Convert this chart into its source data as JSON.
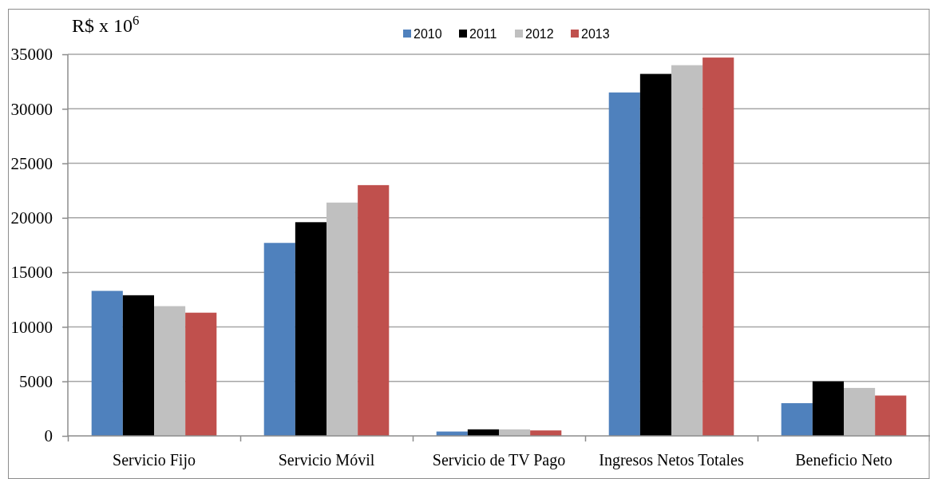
{
  "chart_data": {
    "type": "bar",
    "ylabel": "R$ x 10$^{6}$",
    "categories": [
      "Servicio Fijo",
      "Servicio Móvil",
      "Servicio de TV Pago",
      "Ingresos Netos Totales",
      "Beneficio Neto"
    ],
    "series": [
      {
        "name": "2010",
        "color": "#4f81bd",
        "values": [
          13300,
          17700,
          400,
          31500,
          3000
        ]
      },
      {
        "name": "2011",
        "color": "#000000",
        "values": [
          12900,
          19600,
          600,
          33200,
          5000
        ]
      },
      {
        "name": "2012",
        "color": "#c0c0c0",
        "values": [
          11900,
          21400,
          600,
          34000,
          4400
        ]
      },
      {
        "name": "2013",
        "color": "#c0504d",
        "values": [
          11300,
          23000,
          500,
          34700,
          3700
        ]
      }
    ],
    "ylim": [
      0,
      35000
    ],
    "yticks": [
      0,
      5000,
      10000,
      15000,
      20000,
      25000,
      30000,
      35000
    ],
    "grid": "y",
    "legend": "top"
  }
}
